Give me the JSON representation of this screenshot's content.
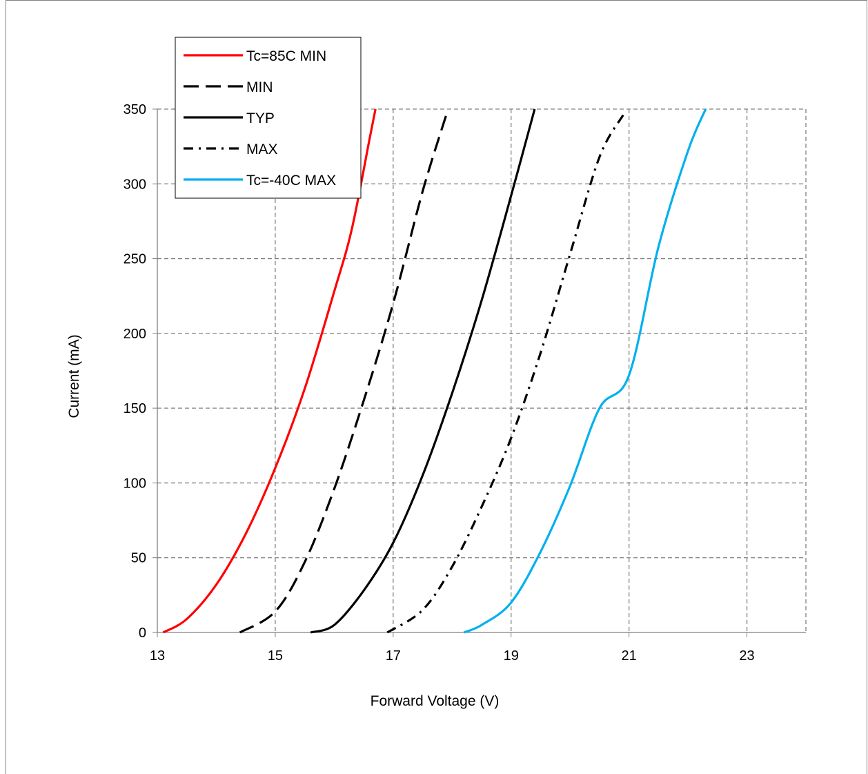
{
  "chart_data": {
    "type": "line",
    "title": "",
    "xlabel": "Forward Voltage (V)",
    "ylabel": "Current (mA)",
    "xlim": [
      13,
      24
    ],
    "ylim": [
      0,
      350
    ],
    "x_ticks": [
      "13",
      "15",
      "17",
      "19",
      "21",
      "23"
    ],
    "y_ticks": [
      "0",
      "50",
      "100",
      "150",
      "200",
      "250",
      "300",
      "350"
    ],
    "grid": true,
    "legend_position": "top-left",
    "series": [
      {
        "name": "Tc=85C MIN",
        "color": "#ff0000",
        "dash": "solid",
        "points": [
          [
            13.1,
            0
          ],
          [
            13.5,
            9
          ],
          [
            14.0,
            32
          ],
          [
            14.5,
            66
          ],
          [
            15.0,
            110
          ],
          [
            15.5,
            163
          ],
          [
            16.0,
            228
          ],
          [
            16.3,
            270
          ],
          [
            16.6,
            330
          ],
          [
            16.7,
            350
          ]
        ]
      },
      {
        "name": "MIN",
        "color": "#000000",
        "dash": "dash",
        "points": [
          [
            14.4,
            0
          ],
          [
            15.0,
            14
          ],
          [
            15.5,
            47
          ],
          [
            16.0,
            96
          ],
          [
            16.5,
            155
          ],
          [
            17.0,
            220
          ],
          [
            17.5,
            295
          ],
          [
            17.9,
            346
          ]
        ]
      },
      {
        "name": "TYP",
        "color": "#000000",
        "dash": "solid",
        "points": [
          [
            15.6,
            0
          ],
          [
            16.0,
            5
          ],
          [
            16.5,
            28
          ],
          [
            17.0,
            60
          ],
          [
            17.5,
            105
          ],
          [
            18.0,
            160
          ],
          [
            18.5,
            222
          ],
          [
            19.0,
            292
          ],
          [
            19.4,
            350
          ]
        ]
      },
      {
        "name": "MAX",
        "color": "#000000",
        "dash": "dashdot",
        "points": [
          [
            16.9,
            0
          ],
          [
            17.5,
            15
          ],
          [
            18.0,
            44
          ],
          [
            18.5,
            84
          ],
          [
            19.0,
            130
          ],
          [
            19.5,
            187
          ],
          [
            20.0,
            253
          ],
          [
            20.5,
            318
          ],
          [
            20.9,
            346
          ]
        ]
      },
      {
        "name": "Tc=-40C MAX",
        "color": "#00b0f0",
        "dash": "solid",
        "points": [
          [
            18.2,
            0
          ],
          [
            18.5,
            5
          ],
          [
            19.0,
            20
          ],
          [
            19.5,
            54
          ],
          [
            20.0,
            98
          ],
          [
            20.5,
            150
          ],
          [
            21.0,
            172
          ],
          [
            21.5,
            258
          ],
          [
            22.0,
            322
          ],
          [
            22.3,
            350
          ]
        ]
      }
    ]
  }
}
